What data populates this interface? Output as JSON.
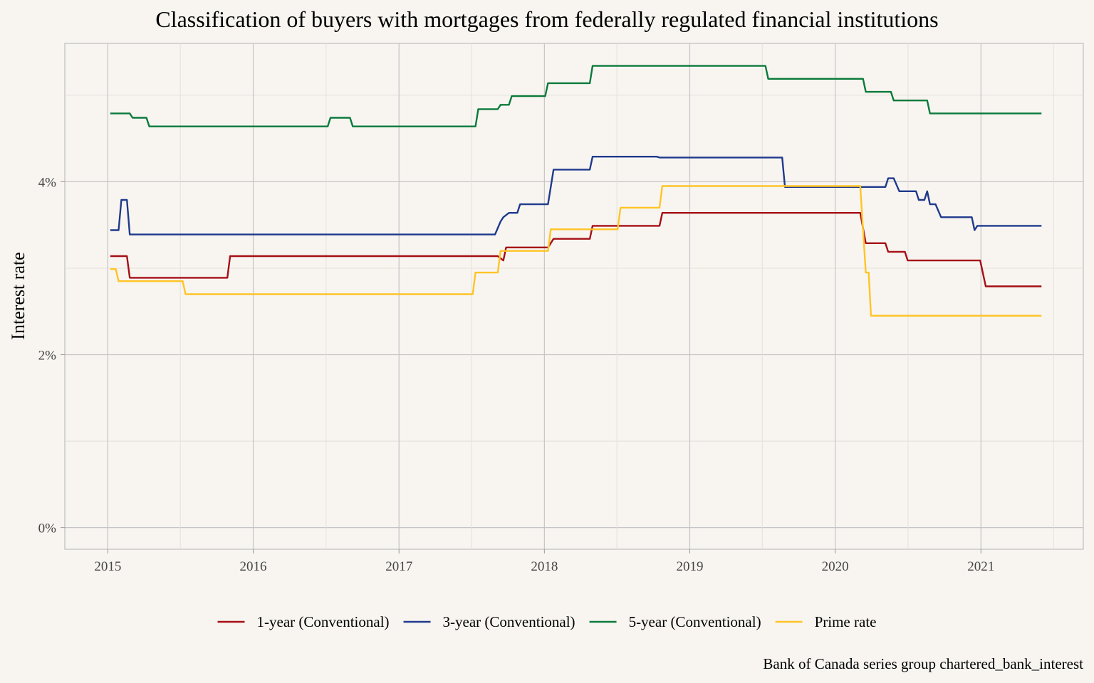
{
  "chart_data": {
    "type": "line",
    "title": "Classification of buyers with mortgages from federally regulated financial institutions",
    "xlabel": "",
    "ylabel": "Interest rate",
    "caption": "Bank of Canada series group chartered_bank_interest",
    "x_ticks": [
      "2015",
      "2016",
      "2017",
      "2018",
      "2019",
      "2020",
      "2021"
    ],
    "y_ticks": [
      "0%",
      "2%",
      "4%"
    ],
    "xlim": [
      "2014-09-15",
      "2021-09-15"
    ],
    "ylim": [
      -0.25,
      5.6
    ],
    "grid": true,
    "legend_position": "bottom",
    "series": [
      {
        "name": "1-year (Conventional)",
        "color": "#a50f15",
        "points": [
          [
            "2015-01-07",
            3.14
          ],
          [
            "2015-02-18",
            3.14
          ],
          [
            "2015-02-25",
            2.89
          ],
          [
            "2015-10-28",
            2.89
          ],
          [
            "2015-11-04",
            3.14
          ],
          [
            "2017-09-06",
            3.14
          ],
          [
            "2017-09-20",
            3.09
          ],
          [
            "2017-09-27",
            3.24
          ],
          [
            "2018-01-10",
            3.24
          ],
          [
            "2018-01-24",
            3.34
          ],
          [
            "2018-04-25",
            3.34
          ],
          [
            "2018-05-02",
            3.49
          ],
          [
            "2018-10-17",
            3.49
          ],
          [
            "2018-10-24",
            3.64
          ],
          [
            "2020-03-04",
            3.64
          ],
          [
            "2020-03-18",
            3.29
          ],
          [
            "2020-05-06",
            3.29
          ],
          [
            "2020-05-13",
            3.19
          ],
          [
            "2020-06-24",
            3.19
          ],
          [
            "2020-07-01",
            3.09
          ],
          [
            "2020-12-30",
            3.09
          ],
          [
            "2021-01-13",
            2.79
          ],
          [
            "2021-06-02",
            2.79
          ]
        ]
      },
      {
        "name": "3-year (Conventional)",
        "color": "#1f3a8c",
        "points": [
          [
            "2015-01-07",
            3.44
          ],
          [
            "2015-01-28",
            3.44
          ],
          [
            "2015-02-04",
            3.79
          ],
          [
            "2015-02-18",
            3.79
          ],
          [
            "2015-02-25",
            3.39
          ],
          [
            "2017-08-30",
            3.39
          ],
          [
            "2017-09-13",
            3.54
          ],
          [
            "2017-09-20",
            3.59
          ],
          [
            "2017-10-04",
            3.64
          ],
          [
            "2017-10-25",
            3.64
          ],
          [
            "2017-11-01",
            3.74
          ],
          [
            "2018-01-10",
            3.74
          ],
          [
            "2018-01-24",
            4.14
          ],
          [
            "2018-04-25",
            4.14
          ],
          [
            "2018-05-02",
            4.29
          ],
          [
            "2018-10-10",
            4.29
          ],
          [
            "2018-10-17",
            4.28
          ],
          [
            "2019-08-21",
            4.28
          ],
          [
            "2019-08-28",
            3.94
          ],
          [
            "2020-05-06",
            3.94
          ],
          [
            "2020-05-13",
            4.04
          ],
          [
            "2020-05-27",
            4.04
          ],
          [
            "2020-06-10",
            3.89
          ],
          [
            "2020-07-22",
            3.89
          ],
          [
            "2020-07-29",
            3.79
          ],
          [
            "2020-08-12",
            3.79
          ],
          [
            "2020-08-19",
            3.89
          ],
          [
            "2020-08-26",
            3.74
          ],
          [
            "2020-09-09",
            3.74
          ],
          [
            "2020-09-23",
            3.59
          ],
          [
            "2020-12-09",
            3.59
          ],
          [
            "2020-12-16",
            3.44
          ],
          [
            "2020-12-23",
            3.49
          ],
          [
            "2021-06-02",
            3.49
          ]
        ]
      },
      {
        "name": "5-year (Conventional)",
        "color": "#0a7a3a",
        "points": [
          [
            "2015-01-07",
            4.79
          ],
          [
            "2015-02-25",
            4.79
          ],
          [
            "2015-03-04",
            4.74
          ],
          [
            "2015-04-08",
            4.74
          ],
          [
            "2015-04-15",
            4.64
          ],
          [
            "2016-07-06",
            4.64
          ],
          [
            "2016-07-13",
            4.74
          ],
          [
            "2016-08-31",
            4.74
          ],
          [
            "2016-09-07",
            4.64
          ],
          [
            "2017-07-12",
            4.64
          ],
          [
            "2017-07-19",
            4.84
          ],
          [
            "2017-09-06",
            4.84
          ],
          [
            "2017-09-13",
            4.89
          ],
          [
            "2017-10-04",
            4.89
          ],
          [
            "2017-10-11",
            4.99
          ],
          [
            "2018-01-03",
            4.99
          ],
          [
            "2018-01-10",
            5.14
          ],
          [
            "2018-04-25",
            5.14
          ],
          [
            "2018-05-02",
            5.34
          ],
          [
            "2019-07-10",
            5.34
          ],
          [
            "2019-07-17",
            5.19
          ],
          [
            "2020-03-11",
            5.19
          ],
          [
            "2020-03-18",
            5.04
          ],
          [
            "2020-05-20",
            5.04
          ],
          [
            "2020-05-27",
            4.94
          ],
          [
            "2020-08-19",
            4.94
          ],
          [
            "2020-08-26",
            4.79
          ],
          [
            "2021-06-02",
            4.79
          ]
        ]
      },
      {
        "name": "Prime rate",
        "color": "#ffc425",
        "points": [
          [
            "2015-01-07",
            2.99
          ],
          [
            "2015-01-21",
            2.99
          ],
          [
            "2015-01-28",
            2.85
          ],
          [
            "2015-07-08",
            2.85
          ],
          [
            "2015-07-15",
            2.7
          ],
          [
            "2017-07-05",
            2.7
          ],
          [
            "2017-07-12",
            2.95
          ],
          [
            "2017-09-06",
            2.95
          ],
          [
            "2017-09-13",
            3.2
          ],
          [
            "2018-01-10",
            3.2
          ],
          [
            "2018-01-17",
            3.45
          ],
          [
            "2018-07-04",
            3.45
          ],
          [
            "2018-07-11",
            3.7
          ],
          [
            "2018-10-17",
            3.7
          ],
          [
            "2018-10-24",
            3.95
          ],
          [
            "2020-03-04",
            3.95
          ],
          [
            "2020-03-11",
            3.45
          ],
          [
            "2020-03-18",
            2.95
          ],
          [
            "2020-03-25",
            2.95
          ],
          [
            "2020-03-31",
            2.45
          ],
          [
            "2021-06-02",
            2.45
          ]
        ]
      }
    ]
  }
}
